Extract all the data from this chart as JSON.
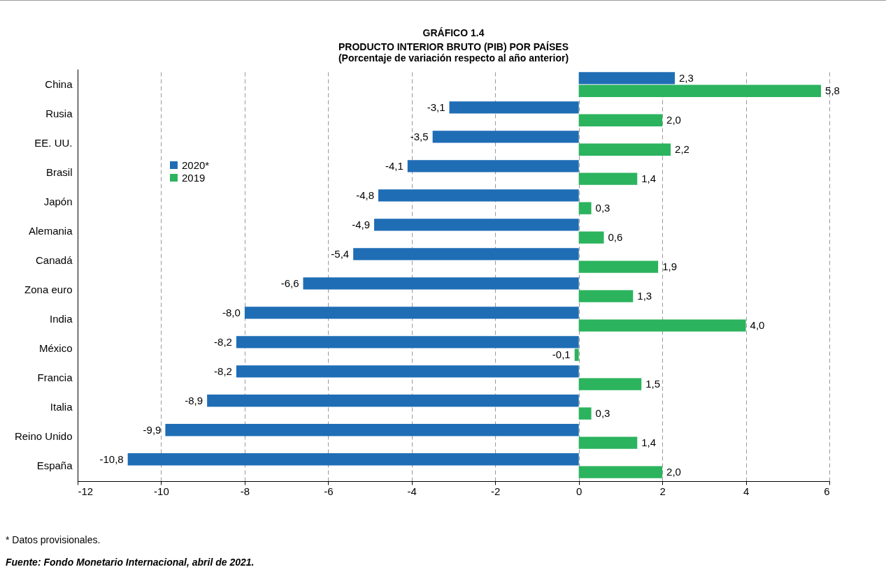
{
  "chart_data": {
    "type": "bar",
    "orientation": "horizontal",
    "title": "GRÁFICO 1.4",
    "subtitle": "PRODUCTO INTERIOR BRUTO (PIB) POR PAÍSES\n(Porcentaje de variación respecto al año anterior)",
    "categories": [
      "China",
      "Rusia",
      "EE. UU.",
      "Brasil",
      "Japón",
      "Alemania",
      "Canadá",
      "Zona euro",
      "India",
      "México",
      "Francia",
      "Italia",
      "Reino Unido",
      "España"
    ],
    "series": [
      {
        "name": "2020*",
        "color": "#1f6db5",
        "values": [
          2.3,
          -3.1,
          -3.5,
          -4.1,
          -4.8,
          -4.9,
          -5.4,
          -6.6,
          -8.0,
          -8.2,
          -8.2,
          -8.9,
          -9.9,
          -10.8
        ],
        "value_labels": [
          "2,3",
          "-3,1",
          "-3,5",
          "-4,1",
          "-4,8",
          "-4,9",
          "-5,4",
          "-6,6",
          "-8,0",
          "-8,2",
          "-8,2",
          "-8,9",
          "-9,9",
          "-10,8"
        ]
      },
      {
        "name": "2019",
        "color": "#2bb35e",
        "values": [
          5.8,
          2.0,
          2.2,
          1.4,
          0.3,
          0.6,
          1.9,
          1.3,
          4.0,
          -0.1,
          1.5,
          0.3,
          1.4,
          2.0
        ],
        "value_labels": [
          "5,8",
          "2,0",
          "2,2",
          "1,4",
          "0,3",
          "0,6",
          "1,9",
          "1,3",
          "4,0",
          "-0,1",
          "1,5",
          "0,3",
          "1,4",
          "2,0"
        ]
      }
    ],
    "xlim": [
      -12,
      6
    ],
    "xticks": [
      -12,
      -10,
      -8,
      -6,
      -4,
      -2,
      0,
      2,
      4,
      6
    ],
    "grid": "x",
    "legend": "top left",
    "annotations": [
      "* Datos provisionales.",
      "Fuente: Fondo Monetario Internacional, abril de 2021."
    ]
  }
}
